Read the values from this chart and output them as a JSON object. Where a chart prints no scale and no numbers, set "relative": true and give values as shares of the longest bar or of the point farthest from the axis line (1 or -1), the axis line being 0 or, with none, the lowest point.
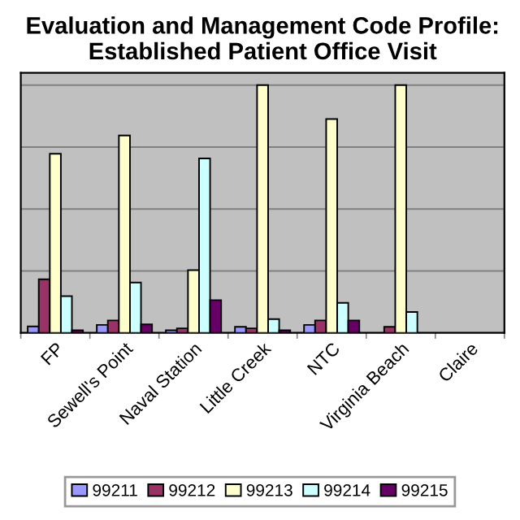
{
  "chart_data": {
    "type": "bar",
    "title": "Evaluation and Management Code Profile:\nEstablished Patient Office Visit",
    "categories": [
      "FP",
      "Sewell's Point",
      "Naval Station",
      "Little Creek",
      "NTC",
      "Virginia Beach",
      "Claire"
    ],
    "relative": true,
    "grid": "y",
    "legend": "bottom",
    "series": [
      {
        "name": "99211",
        "color": "#9999ff",
        "values": [
          0.026,
          0.032,
          0.01,
          0.024,
          0.032,
          null,
          null
        ]
      },
      {
        "name": "99212",
        "color": "#993366",
        "values": [
          0.216,
          0.05,
          0.018,
          0.018,
          0.05,
          0.024,
          null
        ]
      },
      {
        "name": "99213",
        "color": "#ffffcc",
        "values": [
          0.723,
          0.797,
          0.253,
          1.0,
          0.863,
          1.0,
          null
        ]
      },
      {
        "name": "99214",
        "color": "#ccffff",
        "values": [
          0.148,
          0.203,
          0.704,
          0.055,
          0.121,
          0.084,
          null
        ]
      },
      {
        "name": "99215",
        "color": "#660066",
        "values": [
          0.01,
          0.034,
          0.132,
          0.01,
          0.05,
          null,
          null
        ]
      }
    ]
  }
}
